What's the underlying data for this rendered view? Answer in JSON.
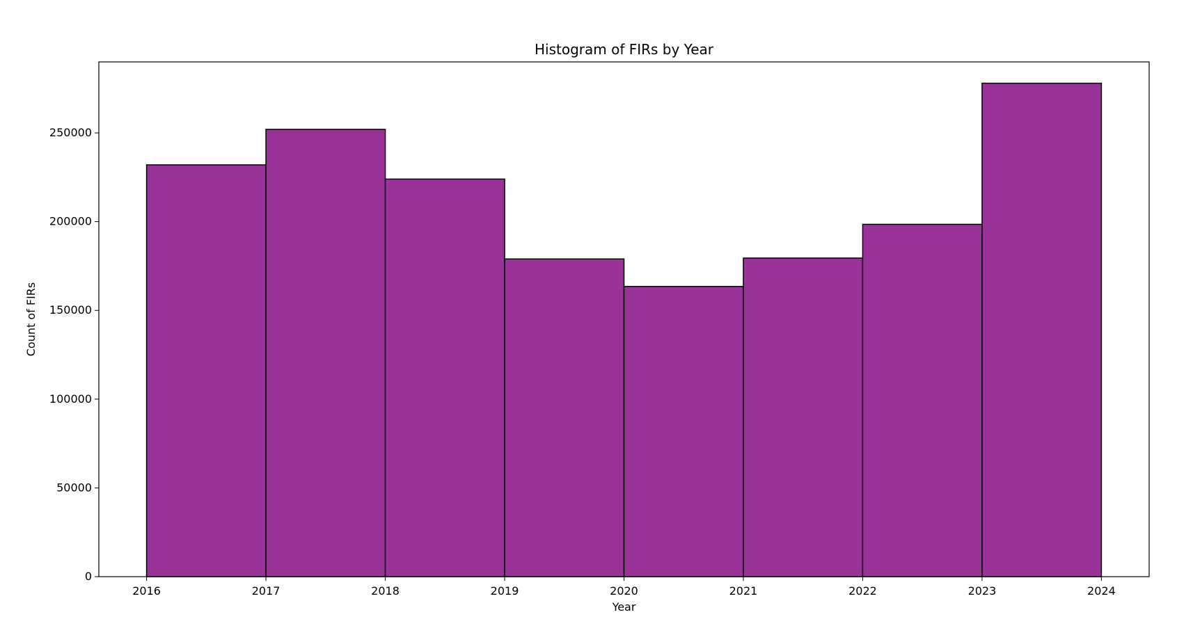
{
  "chart_data": {
    "type": "bar",
    "histogram": true,
    "title": "Histogram of FIRs by Year",
    "xlabel": "Year",
    "ylabel": "Count of FIRs",
    "bin_edges": [
      2016,
      2017,
      2018,
      2019,
      2020,
      2021,
      2022,
      2023,
      2024
    ],
    "values": [
      232000,
      252000,
      224000,
      179000,
      163500,
      179500,
      198500,
      278000
    ],
    "xlim": [
      2015.6,
      2024.4
    ],
    "ylim": [
      0,
      290000
    ],
    "x_ticks": [
      "2016",
      "2017",
      "2018",
      "2019",
      "2020",
      "2021",
      "2022",
      "2023",
      "2024"
    ],
    "y_ticks": [
      "0",
      "50000",
      "100000",
      "150000",
      "200000",
      "250000"
    ],
    "grid": false,
    "bar_color": "#993399",
    "edge_color": "#000000"
  }
}
